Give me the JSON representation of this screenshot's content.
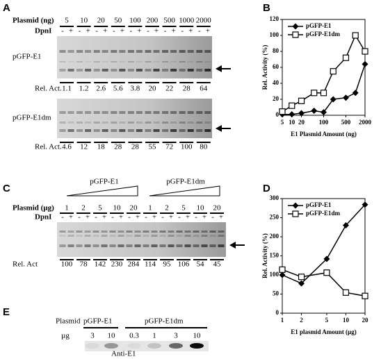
{
  "panel_labels": [
    "A",
    "B",
    "C",
    "D",
    "E"
  ],
  "panel_a": {
    "plasmid_label": "Plasmid (ng)",
    "dpni_label": "DpnI",
    "minus": "-",
    "plus": "+",
    "gels": [
      "pGFP-E1",
      "pGFP-E1dm"
    ],
    "rel_act_label": "Rel. Act."
  },
  "chart_data": [
    {
      "type": "line",
      "xlabel": "E1 Plasmid Amount (ng)",
      "ylabel": "Rel. Activity (%)",
      "x": [
        5,
        10,
        20,
        50,
        100,
        200,
        500,
        1000,
        2000
      ],
      "xscale": "log",
      "xlim": [
        5,
        2000
      ],
      "xticks": [
        5,
        10,
        20,
        100,
        500,
        2000
      ],
      "ylim": [
        0,
        120
      ],
      "yticks": [
        0,
        20,
        40,
        60,
        80,
        100,
        120
      ],
      "legend": "upper left",
      "series": [
        {
          "name": "pGFP-E1",
          "color": "#000000",
          "marker": "diamond",
          "values": [
            1.1,
            1.2,
            2.6,
            5.6,
            3.8,
            20,
            22,
            28,
            64
          ]
        },
        {
          "name": "pGFP-E1dm",
          "color": "#000000",
          "marker": "square",
          "values": [
            4.6,
            12,
            18,
            28,
            28,
            55,
            72,
            100,
            80
          ]
        }
      ]
    },
    {
      "type": "line",
      "xlabel": "E1 plasmid Amount (µg)",
      "ylabel": "Rel. Activity (%)",
      "x": [
        1,
        2,
        5,
        10,
        20
      ],
      "xscale": "log",
      "xlim": [
        1,
        20
      ],
      "xticks": [
        1,
        2,
        5,
        10,
        20
      ],
      "ylim": [
        0,
        300
      ],
      "yticks": [
        0,
        50,
        100,
        150,
        200,
        250,
        300
      ],
      "legend": "upper left",
      "series": [
        {
          "name": "pGFP-E1",
          "color": "#000000",
          "marker": "diamond",
          "values": [
            100,
            78,
            142,
            230,
            284
          ]
        },
        {
          "name": "pGFP-E1dm",
          "color": "#000000",
          "marker": "square",
          "values": [
            114,
            95,
            106,
            54,
            45
          ]
        }
      ]
    }
  ],
  "panel_c": {
    "constructs": [
      "pGFP-E1",
      "pGFP-E1dm"
    ],
    "plasmid_label": "Plasmid (µg)",
    "dpni_label": "DpnI",
    "rel_act_label": "Rel. Act"
  },
  "panel_e": {
    "plasmid_label": "Plasmid",
    "constructs": [
      "pGFP-E1",
      "pGFP-E1dm"
    ],
    "unit_label": "µg",
    "amounts": [
      3,
      10,
      0.3,
      1,
      3,
      10
    ],
    "antibody": "Anti-E1"
  }
}
